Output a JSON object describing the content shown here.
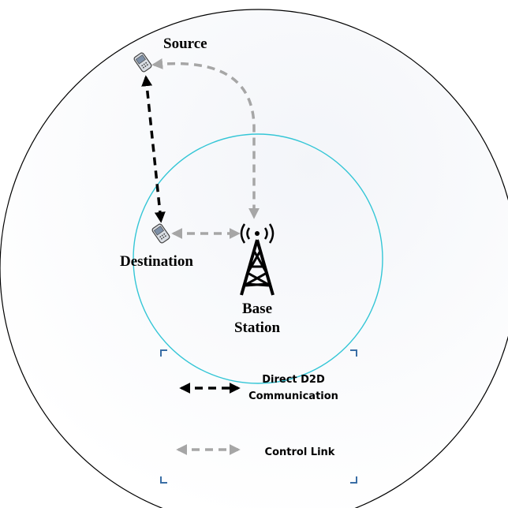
{
  "nodes": {
    "source": {
      "label": "Source"
    },
    "destination": {
      "label": "Destination"
    },
    "base_station": {
      "label_line1": "Base",
      "label_line2": "Station"
    }
  },
  "legend": {
    "direct_d2d": {
      "line1": "Direct D2D",
      "line2": "Communication"
    },
    "control_link": {
      "label": "Control Link"
    }
  },
  "colors": {
    "outer_cell": "#000000",
    "inner_cell": "#34c6d6",
    "d2d_link": "#000000",
    "control_link": "#a6a6a6",
    "cell_fill": "#eef1f6"
  }
}
